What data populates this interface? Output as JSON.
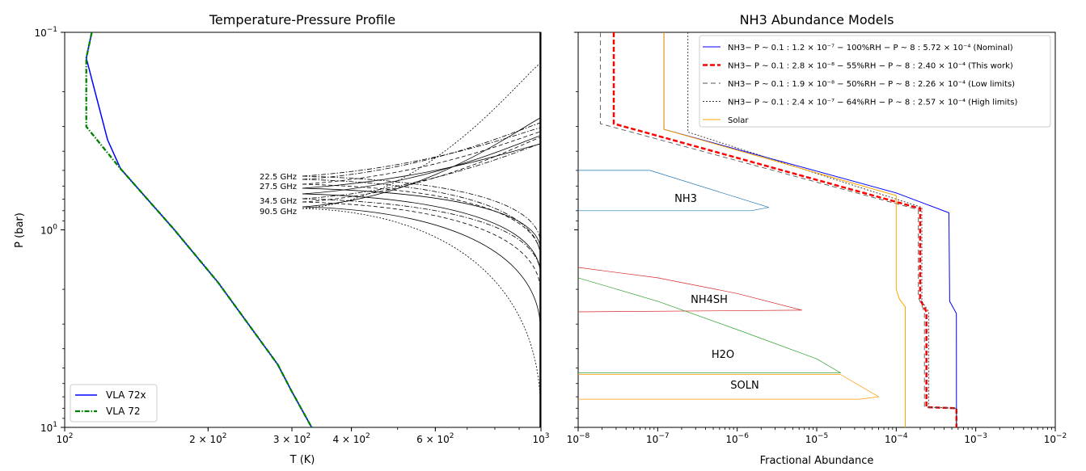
{
  "chart_data": [
    {
      "type": "line",
      "title": "Temperature-Pressure Profile",
      "xlabel": "T (K)",
      "ylabel": "P (bar)",
      "xscale": "log",
      "yscale": "log",
      "yinverted": true,
      "xlim": [
        100,
        1000
      ],
      "ylim": [
        0.1,
        10
      ],
      "xticks": [
        {
          "value": 100,
          "label": "10",
          "sup": "2"
        },
        {
          "value": 200,
          "label": "2 × 10",
          "sup": "2"
        },
        {
          "value": 300,
          "label": "3 × 10",
          "sup": "2"
        },
        {
          "value": 400,
          "label": "4 × 10",
          "sup": "2"
        },
        {
          "value": 600,
          "label": "6 × 10",
          "sup": "2"
        },
        {
          "value": 1000,
          "label": "10",
          "sup": "3"
        }
      ],
      "yticks": [
        {
          "value": 0.1,
          "label": "10",
          "sup": "−1"
        },
        {
          "value": 1,
          "label": "10",
          "sup": "0"
        },
        {
          "value": 10,
          "label": "10",
          "sup": "1"
        }
      ],
      "legend_position": "bottom-left",
      "series": [
        {
          "name": "VLA 72x",
          "color": "#0000ff",
          "style": "solid",
          "points": [
            [
              114,
              0.1
            ],
            [
              111,
              0.135
            ],
            [
              123,
              0.35
            ],
            [
              131,
              0.49
            ],
            [
              170,
              1.0
            ],
            [
              210,
              1.85
            ],
            [
              280,
              4.8
            ],
            [
              300,
              6.6
            ],
            [
              330,
              10
            ]
          ]
        },
        {
          "name": "VLA 72",
          "color": "#008000",
          "style": "dashdot",
          "points": [
            [
              114,
              0.1
            ],
            [
              111,
              0.135
            ],
            [
              111,
              0.3
            ],
            [
              130,
              0.48
            ],
            [
              170,
              1.0
            ],
            [
              210,
              1.85
            ],
            [
              280,
              4.8
            ],
            [
              300,
              6.6
            ],
            [
              330,
              10
            ]
          ]
        }
      ],
      "frequency_labels": [
        "22.5 GHz",
        "27.5 GHz",
        "34.5 GHz",
        "90.5 GHz"
      ],
      "weighting_curves_color": "#000000"
    },
    {
      "type": "line",
      "title": "NH3 Abundance Models",
      "xlabel": "Fractional Abundance",
      "ylabel": "",
      "xscale": "log",
      "yscale": "log",
      "yinverted": true,
      "xlim": [
        1e-08,
        0.01
      ],
      "ylim": [
        0.1,
        10
      ],
      "xticks": [
        {
          "value": 1e-08,
          "label": "10",
          "sup": "−8"
        },
        {
          "value": 1e-07,
          "label": "10",
          "sup": "−7"
        },
        {
          "value": 1e-06,
          "label": "10",
          "sup": "−6"
        },
        {
          "value": 1e-05,
          "label": "10",
          "sup": "−5"
        },
        {
          "value": 0.0001,
          "label": "10",
          "sup": "−4"
        },
        {
          "value": 0.001,
          "label": "10",
          "sup": "−3"
        },
        {
          "value": 0.01,
          "label": "10",
          "sup": "−2"
        }
      ],
      "legend_position": "top-right",
      "series": [
        {
          "name": "NH3− P ~ 0.1 : 1.2 × 10⁻⁷ − 100%RH − P ~ 8 : 5.72 × 10⁻⁴ (Nominal)",
          "color": "#0000ff",
          "style": "solid",
          "points": [
            [
              1.2e-07,
              0.1
            ],
            [
              1.2e-07,
              0.31
            ],
            [
              0.0001,
              0.65
            ],
            [
              0.00046,
              0.82
            ],
            [
              0.00047,
              2.3
            ],
            [
              0.00057,
              2.65
            ],
            [
              0.000572,
              10
            ]
          ]
        },
        {
          "name": "NH3− P ~ 0.1 : 2.8 × 10⁻⁸ − 55%RH − P ~ 8 : 2.40 × 10⁻⁴ (This work)",
          "color": "#ff0000",
          "style": "bolddash",
          "points": [
            [
              2.8e-08,
              0.1
            ],
            [
              2.8e-08,
              0.29
            ],
            [
              0.0002,
              0.78
            ],
            [
              0.0002,
              2.25
            ],
            [
              0.00024,
              2.6
            ],
            [
              0.00024,
              7.9
            ],
            [
              0.000572,
              8.0
            ],
            [
              0.000572,
              10
            ]
          ]
        },
        {
          "name": "NH3− P ~ 0.1 : 1.9 × 10⁻⁸ − 50%RH − P ~ 8 : 2.26 × 10⁻⁴ (Low limits)",
          "color": "#555555",
          "style": "longdash",
          "points": [
            [
              1.9e-08,
              0.1
            ],
            [
              1.9e-08,
              0.29
            ],
            [
              0.00019,
              0.79
            ],
            [
              0.00019,
              2.2
            ],
            [
              0.000226,
              2.6
            ],
            [
              0.000226,
              7.9
            ],
            [
              0.000572,
              8.0
            ],
            [
              0.000572,
              10
            ]
          ]
        },
        {
          "name": "NH3− P ~ 0.1 : 2.4 × 10⁻⁷ − 64%RH − P ~ 8 : 2.57 × 10⁻⁴ (High limits)",
          "color": "#333333",
          "style": "dotted",
          "points": [
            [
              2.4e-07,
              0.1
            ],
            [
              2.4e-07,
              0.32
            ],
            [
              0.00021,
              0.77
            ],
            [
              0.00021,
              2.3
            ],
            [
              0.000257,
              2.6
            ],
            [
              0.000257,
              7.9
            ],
            [
              0.000572,
              8.0
            ],
            [
              0.000572,
              10
            ]
          ]
        },
        {
          "name": "Solar",
          "color": "#ffa500",
          "style": "solid",
          "points": [
            [
              1.2e-07,
              0.1
            ],
            [
              1.2e-07,
              0.31
            ],
            [
              0.0001,
              0.67
            ],
            [
              0.0001,
              2.0
            ],
            [
              0.00011,
              2.25
            ],
            [
              0.00013,
              2.45
            ],
            [
              0.00013,
              10
            ]
          ]
        }
      ],
      "cloud_regions": [
        {
          "label": "NH3",
          "color": "#1f77b4",
          "lower": [
            [
              1e-08,
              0.8
            ],
            [
              1.5e-06,
              0.8
            ],
            [
              2.5e-06,
              0.77
            ]
          ],
          "upper": [
            [
              1e-08,
              0.5
            ],
            [
              8e-08,
              0.5
            ],
            [
              2.5e-06,
              0.77
            ]
          ]
        },
        {
          "label": "NH4SH",
          "color": "#d62728",
          "lower": [
            [
              1e-08,
              2.6
            ],
            [
              6.5e-06,
              2.55
            ]
          ],
          "upper": [
            [
              1e-08,
              1.55
            ],
            [
              1e-07,
              1.75
            ],
            [
              1e-06,
              2.1
            ],
            [
              6.5e-06,
              2.55
            ]
          ]
        },
        {
          "label": "H2O",
          "color": "#2ca02c",
          "lower": [
            [
              1e-08,
              5.3
            ],
            [
              2e-05,
              5.3
            ]
          ],
          "upper": [
            [
              1e-08,
              1.75
            ],
            [
              1e-07,
              2.3
            ],
            [
              1e-06,
              3.2
            ],
            [
              1e-05,
              4.5
            ],
            [
              2e-05,
              5.3
            ]
          ]
        },
        {
          "label": "SOLN",
          "color": "#ff9900",
          "lower": [
            [
              1e-08,
              7.2
            ],
            [
              3.5e-05,
              7.2
            ],
            [
              6e-05,
              7.0
            ]
          ],
          "upper": [
            [
              1e-08,
              5.4
            ],
            [
              2e-05,
              5.4
            ],
            [
              6e-05,
              7.0
            ]
          ]
        }
      ]
    }
  ]
}
